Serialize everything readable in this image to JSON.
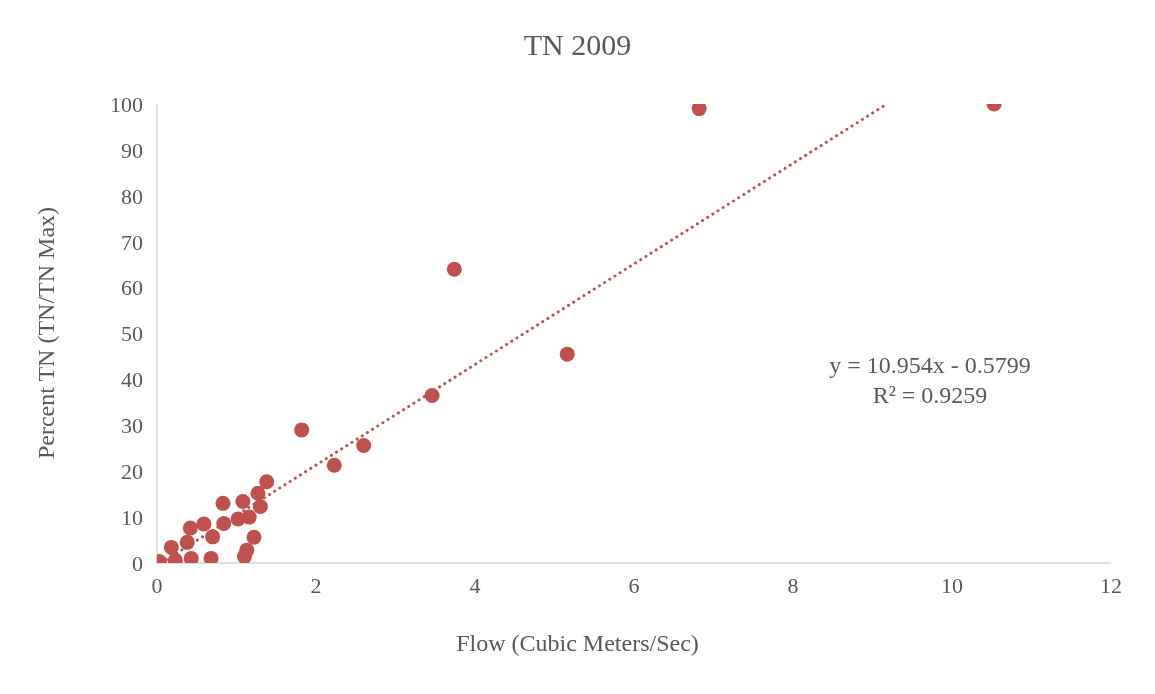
{
  "chart_data": {
    "type": "scatter",
    "title": "TN 2009",
    "xlabel": "Flow (Cubic Meters/Sec)",
    "ylabel": "Percent TN (TN/TN Max)",
    "xlim": [
      0,
      12
    ],
    "xticks": [
      0,
      2,
      4,
      6,
      8,
      10,
      12
    ],
    "ylim": [
      0,
      100
    ],
    "yticks": [
      0,
      10,
      20,
      30,
      40,
      50,
      60,
      70,
      80,
      90,
      100
    ],
    "grid": false,
    "legend": false,
    "marker": "circle",
    "series": [
      {
        "color": "#c0504d",
        "x": [
          10.53,
          6.82,
          3.74,
          5.16,
          3.46,
          1.82,
          2.23,
          2.6,
          1.38,
          1.27,
          1.3,
          1.08,
          0.83,
          1.16,
          1.02,
          0.84,
          0.59,
          0.42,
          0.7,
          1.22,
          1.13,
          1.1,
          0.68,
          0.03,
          0.23,
          0.43,
          0.18,
          0.38
        ],
        "values": [
          100,
          99,
          64,
          45.5,
          36.5,
          29,
          21.3,
          25.6,
          17.7,
          15.2,
          12.3,
          13.4,
          13,
          10,
          9.6,
          8.6,
          8.5,
          7.6,
          5.7,
          5.6,
          2.8,
          1.4,
          1,
          0.3,
          0.6,
          1,
          3.4,
          4.5
        ]
      },
      {
        "type": "line",
        "color": "#c0504d",
        "line_style": "dotted",
        "marker": "none",
        "x": [
          0.053,
          9.18
        ],
        "values": [
          0,
          100
        ]
      }
    ],
    "annotations": [
      "y = 10.954x - 0.5799",
      "R² = 0.9259"
    ]
  }
}
